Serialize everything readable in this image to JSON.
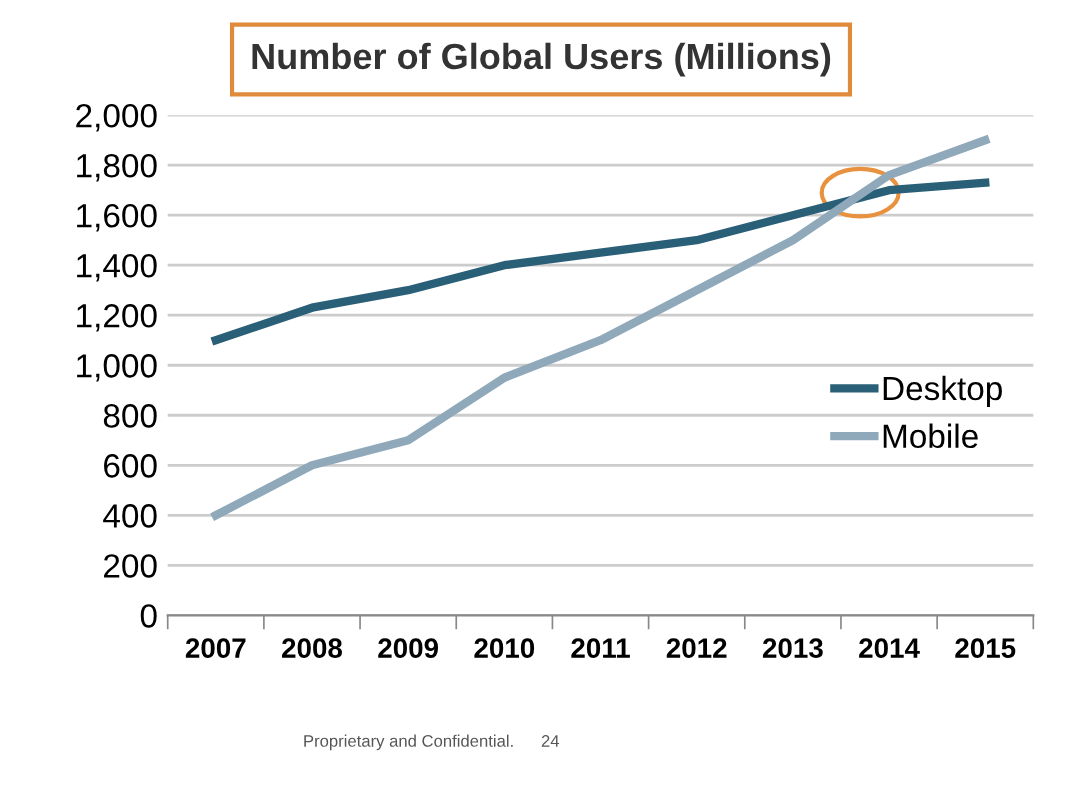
{
  "chart_data": {
    "type": "line",
    "title": "Number of Global Users (Millions)",
    "categories": [
      "2007",
      "2008",
      "2009",
      "2010",
      "2011",
      "2012",
      "2013",
      "2014",
      "2015"
    ],
    "series": [
      {
        "name": "Desktop",
        "color": "#2a5f78",
        "values": [
          1100,
          1230,
          1300,
          1400,
          1450,
          1500,
          1600,
          1700,
          1730
        ]
      },
      {
        "name": "Mobile",
        "color": "#8fa9ba",
        "values": [
          400,
          600,
          700,
          950,
          1100,
          1300,
          1500,
          1760,
          1900
        ]
      }
    ],
    "ylim": [
      0,
      2000
    ],
    "yticks": [
      0,
      200,
      400,
      600,
      800,
      {
        "value": 1000,
        "label": "1,000"
      },
      {
        "value": 1200,
        "label": "1,200"
      },
      {
        "value": 1400,
        "label": "1,400"
      },
      {
        "value": 1600,
        "label": "1,600"
      },
      {
        "value": 1800,
        "label": "1,800"
      },
      {
        "value": 2000,
        "label": "2,000"
      }
    ],
    "grid": "y",
    "legend": "right",
    "marker": "none",
    "line_style": "solid",
    "annotations": [
      "Proprietary and Confidential.",
      "24"
    ]
  }
}
